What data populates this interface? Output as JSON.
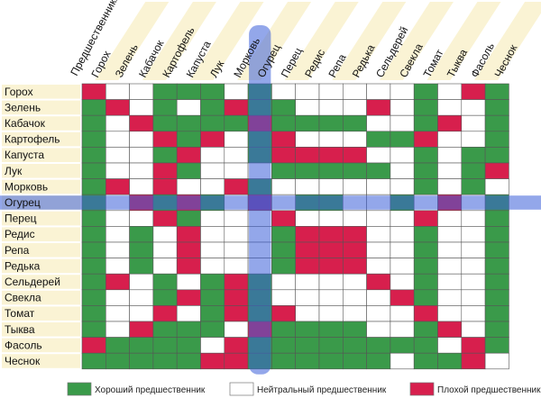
{
  "chart_data": {
    "type": "heatmap",
    "corner_label": "Предшественники",
    "columns": [
      "Горох",
      "Зелень",
      "Кабачок",
      "Картофель",
      "Капуста",
      "Лук",
      "Морковь",
      "Огурец",
      "Перец",
      "Редис",
      "Репа",
      "Редька",
      "Сельдерей",
      "Свекла",
      "Томат",
      "Тыква",
      "Фасоль",
      "Чеснок"
    ],
    "rows": [
      "Горох",
      "Зелень",
      "Кабачок",
      "Картофель",
      "Капуста",
      "Лук",
      "Морковь",
      "Огурец",
      "Перец",
      "Редис",
      "Репа",
      "Редька",
      "Сельдерей",
      "Свекла",
      "Томат",
      "Тыква",
      "Фасоль",
      "Чеснок"
    ],
    "highlight_row": "Огурец",
    "highlight_column": "Огурец",
    "value_codes": {
      "G": "Хороший предшественник",
      "W": "Нейтральный предшественник",
      "R": "Плохой предшественник"
    },
    "cells": [
      [
        "R",
        "W",
        "W",
        "G",
        "G",
        "G",
        "W",
        "G",
        "W",
        "W",
        "W",
        "W",
        "W",
        "W",
        "G",
        "W",
        "R",
        "G"
      ],
      [
        "G",
        "R",
        "W",
        "G",
        "W",
        "G",
        "R",
        "G",
        "G",
        "W",
        "W",
        "W",
        "R",
        "W",
        "G",
        "W",
        "W",
        "G"
      ],
      [
        "G",
        "W",
        "R",
        "G",
        "G",
        "G",
        "G",
        "R",
        "G",
        "G",
        "G",
        "G",
        "W",
        "W",
        "G",
        "R",
        "W",
        "G"
      ],
      [
        "G",
        "W",
        "W",
        "R",
        "G",
        "R",
        "W",
        "G",
        "R",
        "W",
        "W",
        "W",
        "G",
        "G",
        "R",
        "W",
        "W",
        "G"
      ],
      [
        "G",
        "W",
        "W",
        "G",
        "R",
        "W",
        "W",
        "G",
        "R",
        "R",
        "R",
        "R",
        "W",
        "W",
        "G",
        "W",
        "G",
        "G"
      ],
      [
        "G",
        "W",
        "W",
        "R",
        "G",
        "W",
        "W",
        "W",
        "G",
        "G",
        "G",
        "G",
        "G",
        "W",
        "G",
        "W",
        "G",
        "R"
      ],
      [
        "G",
        "R",
        "W",
        "R",
        "W",
        "W",
        "R",
        "G",
        "W",
        "W",
        "W",
        "W",
        "W",
        "W",
        "G",
        "W",
        "G",
        "W"
      ],
      [
        "G",
        "W",
        "R",
        "G",
        "R",
        "G",
        "W",
        "R",
        "W",
        "G",
        "G",
        "W",
        "W",
        "G",
        "W",
        "R",
        "W",
        "G"
      ],
      [
        "G",
        "W",
        "W",
        "R",
        "G",
        "W",
        "W",
        "W",
        "R",
        "W",
        "W",
        "W",
        "W",
        "W",
        "R",
        "W",
        "W",
        "G"
      ],
      [
        "G",
        "W",
        "G",
        "W",
        "R",
        "W",
        "W",
        "W",
        "G",
        "R",
        "R",
        "R",
        "W",
        "W",
        "G",
        "W",
        "W",
        "G"
      ],
      [
        "G",
        "W",
        "G",
        "W",
        "R",
        "W",
        "W",
        "W",
        "G",
        "R",
        "R",
        "R",
        "W",
        "W",
        "G",
        "W",
        "W",
        "G"
      ],
      [
        "G",
        "W",
        "G",
        "W",
        "R",
        "W",
        "W",
        "W",
        "G",
        "R",
        "R",
        "R",
        "W",
        "W",
        "G",
        "W",
        "W",
        "G"
      ],
      [
        "G",
        "R",
        "W",
        "G",
        "W",
        "G",
        "R",
        "G",
        "W",
        "W",
        "W",
        "W",
        "R",
        "W",
        "G",
        "W",
        "W",
        "G"
      ],
      [
        "G",
        "W",
        "W",
        "G",
        "R",
        "G",
        "R",
        "G",
        "W",
        "W",
        "W",
        "W",
        "W",
        "R",
        "G",
        "W",
        "W",
        "G"
      ],
      [
        "G",
        "W",
        "W",
        "R",
        "W",
        "G",
        "R",
        "G",
        "R",
        "W",
        "W",
        "W",
        "W",
        "W",
        "R",
        "W",
        "W",
        "G"
      ],
      [
        "G",
        "W",
        "R",
        "G",
        "G",
        "G",
        "W",
        "R",
        "G",
        "G",
        "G",
        "G",
        "W",
        "W",
        "G",
        "R",
        "W",
        "G"
      ],
      [
        "R",
        "G",
        "G",
        "G",
        "G",
        "W",
        "R",
        "G",
        "G",
        "G",
        "G",
        "G",
        "G",
        "G",
        "G",
        "W",
        "R",
        "G"
      ],
      [
        "G",
        "G",
        "G",
        "G",
        "G",
        "R",
        "R",
        "G",
        "G",
        "G",
        "G",
        "G",
        "G",
        "W",
        "G",
        "G",
        "R",
        "W"
      ]
    ],
    "colors": {
      "G": "#3a9a4a",
      "W": "#ffffff",
      "R": "#d71f4d",
      "label_bg": "#faf3d4",
      "highlight": "#3b5fd8"
    },
    "legend": [
      {
        "code": "G",
        "label": "Хороший предшественник"
      },
      {
        "code": "W",
        "label": "Нейтральный предшественник"
      },
      {
        "code": "R",
        "label": "Плохой предшественник"
      }
    ],
    "legend_position": "bottom"
  }
}
